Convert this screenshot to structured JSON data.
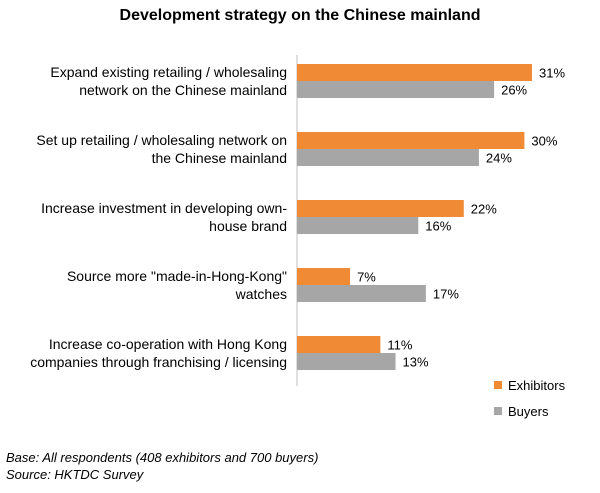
{
  "chart_data": {
    "type": "bar",
    "orientation": "horizontal",
    "title": "Development strategy on the Chinese mainland",
    "categories": [
      [
        "Expand existing retailing / wholesaling",
        "network on the Chinese mainland"
      ],
      [
        "Set up retailing / wholesaling network on",
        "the Chinese mainland"
      ],
      [
        "Increase investment in developing own-",
        "house brand"
      ],
      [
        "Source more \"made-in-Hong-Kong\"",
        "watches"
      ],
      [
        "Increase co-operation with Hong Kong",
        "companies through franchising / licensing"
      ]
    ],
    "series": [
      {
        "name": "Exhibitors",
        "color": "#F08A34",
        "values": [
          31,
          30,
          22,
          7,
          11
        ]
      },
      {
        "name": "Buyers",
        "color": "#A6A6A6",
        "values": [
          26,
          24,
          16,
          17,
          13
        ]
      }
    ],
    "value_suffix": "%",
    "xlim": [
      0,
      32
    ],
    "grid": false,
    "legend_position": "bottom-right"
  },
  "footnotes": {
    "base": "Base: All respondents (408 exhibitors and 700 buyers)",
    "source": "Source: HKTDC Survey"
  }
}
